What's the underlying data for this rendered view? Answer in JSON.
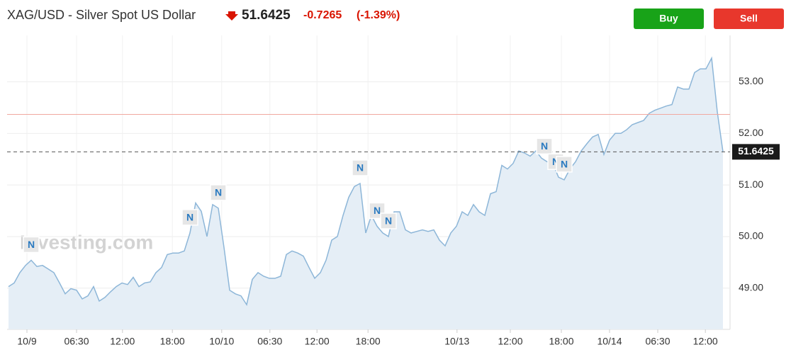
{
  "header": {
    "title": "XAG/USD - Silver Spot US Dollar",
    "change": -0.7265,
    "change_percent": "(-1.39%)",
    "buy": "Buy",
    "sell": "Sell"
  },
  "chart_data": {
    "type": "area",
    "watermark": "Investing.com",
    "color": "#8db6d8",
    "fill": "#e5eef6",
    "values": [
      49.03,
      49.1,
      49.3,
      49.44,
      49.54,
      49.42,
      49.44,
      49.37,
      49.3,
      49.1,
      48.89,
      48.99,
      48.96,
      48.79,
      48.85,
      49.03,
      48.75,
      48.82,
      48.93,
      49.03,
      49.1,
      49.07,
      49.21,
      49.03,
      49.1,
      49.12,
      49.3,
      49.4,
      49.65,
      49.68,
      49.68,
      49.72,
      50.07,
      50.65,
      50.49,
      50.0,
      50.62,
      50.55,
      49.79,
      48.96,
      48.89,
      48.85,
      48.68,
      49.17,
      49.3,
      49.23,
      49.19,
      49.19,
      49.23,
      49.65,
      49.72,
      49.68,
      49.62,
      49.4,
      49.19,
      49.3,
      49.54,
      49.93,
      50.0,
      50.41,
      50.76,
      50.97,
      51.03,
      50.07,
      50.41,
      50.2,
      50.07,
      50.0,
      50.48,
      50.48,
      50.13,
      50.07,
      50.1,
      50.13,
      50.1,
      50.13,
      49.93,
      49.82,
      50.07,
      50.2,
      50.48,
      50.41,
      50.62,
      50.48,
      50.41,
      50.83,
      50.87,
      51.38,
      51.31,
      51.42,
      51.66,
      51.62,
      51.56,
      51.66,
      51.52,
      51.45,
      51.42,
      51.15,
      51.1,
      51.31,
      51.45,
      51.66,
      51.8,
      51.93,
      51.98,
      51.59,
      51.87,
      52.0,
      52.0,
      52.07,
      52.17,
      52.21,
      52.25,
      52.39,
      52.45,
      52.49,
      52.53,
      52.56,
      52.9,
      52.86,
      52.86,
      53.18,
      53.25,
      53.25,
      53.46,
      52.42,
      51.6425
    ],
    "last_price": 51.6425,
    "reference_line": 52.369,
    "xlim": [
      0,
      126
    ],
    "ylim": [
      48.2,
      53.9
    ],
    "yticks": [
      {
        "value": 49,
        "label": "49.00"
      },
      {
        "value": 50,
        "label": "50.00"
      },
      {
        "value": 51,
        "label": "51.00"
      },
      {
        "value": 52,
        "label": "52.00"
      },
      {
        "value": 53,
        "label": "53.00"
      }
    ],
    "xticks": [
      {
        "value": 3.25,
        "label": "10/9"
      },
      {
        "value": 12,
        "label": "06:30"
      },
      {
        "value": 20.1,
        "label": "12:00"
      },
      {
        "value": 28.9,
        "label": "18:00"
      },
      {
        "value": 37.6,
        "label": "10/10"
      },
      {
        "value": 46.1,
        "label": "06:30"
      },
      {
        "value": 54.4,
        "label": "12:00"
      },
      {
        "value": 63.4,
        "label": "18:00"
      },
      {
        "value": 79.1,
        "label": "10/13"
      },
      {
        "value": 88.5,
        "label": "12:00"
      },
      {
        "value": 97.5,
        "label": "18:00"
      },
      {
        "value": 106,
        "label": "10/14"
      },
      {
        "value": 114.5,
        "label": "06:30"
      },
      {
        "value": 122.9,
        "label": "12:00"
      }
    ],
    "annotations": [
      {
        "label": "N",
        "x": 4
      },
      {
        "label": "N",
        "x": 32
      },
      {
        "label": "N",
        "x": 37
      },
      {
        "label": "N",
        "x": 62
      },
      {
        "label": "N",
        "x": 65
      },
      {
        "label": "N",
        "x": 67
      },
      {
        "label": "N",
        "x": 94.5
      },
      {
        "label": "N",
        "x": 96.5
      },
      {
        "label": "N",
        "x": 98
      }
    ],
    "grid": true
  }
}
